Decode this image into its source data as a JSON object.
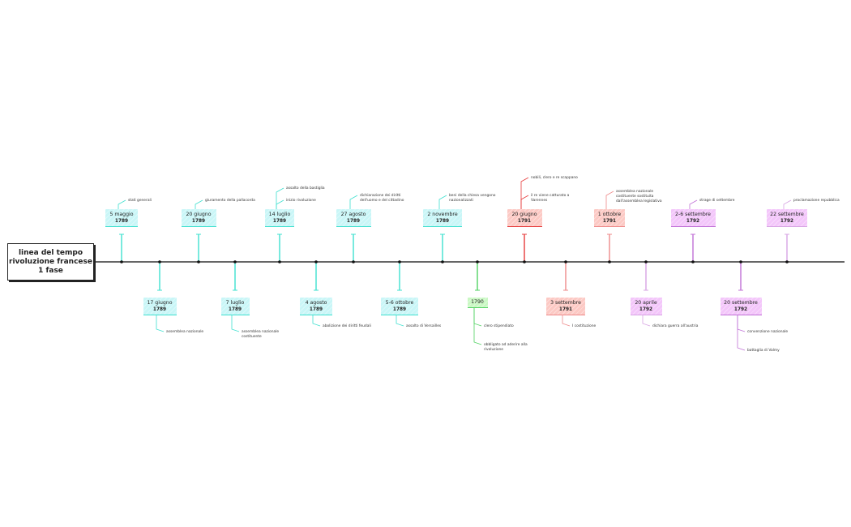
{
  "title": [
    "linea del tempo",
    "rivoluzione francese",
    "1 fase"
  ],
  "colors": {
    "cyan": {
      "bg": "#c9f6f7",
      "line": "#3fe0cf"
    },
    "red": {
      "bg": "#fcc9c4",
      "line": "#e63b3b"
    },
    "lightred": {
      "bg": "#fcc9c4",
      "line": "#ee8a8a"
    },
    "purple": {
      "bg": "#f3c6fa",
      "line": "#c070d6"
    },
    "lightpurple": {
      "bg": "#f3c6fa",
      "line": "#d7a4e3"
    },
    "green": {
      "bg": "#c9f8c3",
      "line": "#52d263"
    },
    "axis": "#333333"
  },
  "events": [
    {
      "date": "5 maggio",
      "year": "1789",
      "side": "top",
      "color": "cyan",
      "notes": [
        "stati generali"
      ]
    },
    {
      "date": "17 giugno",
      "year": "1789",
      "side": "bottom",
      "color": "cyan",
      "notes": [
        "assemblea nazionale"
      ]
    },
    {
      "date": "20 giugno",
      "year": "1789",
      "side": "top",
      "color": "cyan",
      "notes": [
        "giuramento della pallacorda"
      ]
    },
    {
      "date": "7 luglio",
      "year": "1789",
      "side": "bottom",
      "color": "cyan",
      "notes": [
        "assemblea nazionale\ncostituente"
      ]
    },
    {
      "date": "14 luglio",
      "year": "1789",
      "side": "top",
      "color": "cyan",
      "notes": [
        "assalto della bastiglia",
        "inizio rivoluzione"
      ]
    },
    {
      "date": "4 agosto",
      "year": "1789",
      "side": "bottom",
      "color": "cyan",
      "notes": [
        "abolizione dei diritti feudali"
      ]
    },
    {
      "date": "27 agosto",
      "year": "1789",
      "side": "top",
      "color": "cyan",
      "notes": [
        "dichiarazione dei diritti\ndell'uomo e del cittadino"
      ]
    },
    {
      "date": "5-6 ottobre",
      "year": "1789",
      "side": "bottom",
      "color": "cyan",
      "notes": [
        "assalto di Versailles"
      ]
    },
    {
      "date": "2 novembre",
      "year": "1789",
      "side": "top",
      "color": "cyan",
      "notes": [
        "beni della chiesa vengono\nnazionalizzati"
      ]
    },
    {
      "date": "1790",
      "year": "",
      "side": "bottom",
      "color": "green",
      "notes": [
        "clero stipendiato",
        "obbligato ad aderire alla\nrivoluzione"
      ]
    },
    {
      "date": "20 giugno",
      "year": "1791",
      "side": "top",
      "color": "red",
      "notes": [
        "nobili, clero e re scappano",
        "il re viene catturato a\nVarennes"
      ]
    },
    {
      "date": "3 settembre",
      "year": "1791",
      "side": "bottom",
      "color": "lightred",
      "notes": [
        "I costituzione"
      ]
    },
    {
      "date": "1 ottobre",
      "year": "1791",
      "side": "top",
      "color": "lightred",
      "notes": [
        "assemblea nazionale\ncostituente sostituita\ndall'assemblea legislativa"
      ]
    },
    {
      "date": "20 aprile",
      "year": "1792",
      "side": "bottom",
      "color": "lightpurple",
      "notes": [
        "dichiara guerra all'austria"
      ]
    },
    {
      "date": "2-6 settembre",
      "year": "1792",
      "side": "top",
      "color": "purple",
      "notes": [
        "strage di settembre"
      ]
    },
    {
      "date": "20 settembre",
      "year": "1792",
      "side": "bottom",
      "color": "purple",
      "notes": [
        "convenzione nazionale",
        "battaglia di Valmy"
      ]
    },
    {
      "date": "22 settembre",
      "year": "1792",
      "side": "top",
      "color": "lightpurple",
      "notes": [
        "proclamazione repubblica"
      ]
    }
  ]
}
